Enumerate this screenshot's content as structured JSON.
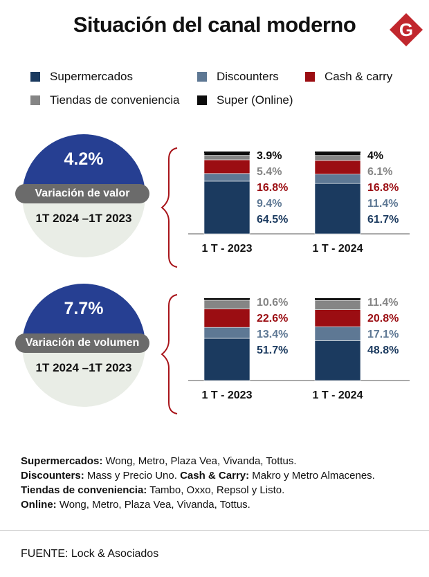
{
  "title": "Situación del canal moderno",
  "logo_letter": "G",
  "colors": {
    "supermercados": "#1b3a5f",
    "discounters": "#5e7894",
    "cash_carry": "#9b0d12",
    "conveniencia": "#858585",
    "online": "#0d0d0d",
    "circle_top": "#263f92",
    "circle_bottom": "#e9ede6",
    "pill": "#6b6b6b",
    "logo": "#c1272d"
  },
  "legend": [
    {
      "key": "supermercados",
      "label": "Supermercados"
    },
    {
      "key": "discounters",
      "label": "Discounters"
    },
    {
      "key": "cash_carry",
      "label": "Cash & carry"
    },
    {
      "key": "conveniencia",
      "label": "Tiendas de conveniencia"
    },
    {
      "key": "online",
      "label": "Super (Online)"
    }
  ],
  "panels": {
    "valor": {
      "pct": "4.2%",
      "label": "Variación de valor",
      "period": "1T 2024 –1T 2023"
    },
    "volumen": {
      "pct": "7.7%",
      "label": "Variación de volumen",
      "period": "1T 2024 –1T 2023"
    }
  },
  "chart_data": [
    {
      "type": "bar",
      "stacked": true,
      "title": "Variación de valor",
      "categories": [
        "1 T - 2023",
        "1 T - 2024"
      ],
      "series": [
        {
          "name": "Supermercados",
          "key": "supermercados",
          "values": [
            64.5,
            61.7
          ],
          "labels": [
            "64.5%",
            "61.7%"
          ]
        },
        {
          "name": "Discounters",
          "key": "discounters",
          "values": [
            9.4,
            11.4
          ],
          "labels": [
            "9.4%",
            "11.4%"
          ]
        },
        {
          "name": "Cash & carry",
          "key": "cash_carry",
          "values": [
            16.8,
            16.8
          ],
          "labels": [
            "16.8%",
            "16.8%"
          ]
        },
        {
          "name": "Tiendas de conveniencia",
          "key": "conveniencia",
          "values": [
            5.4,
            6.1
          ],
          "labels": [
            "5.4%",
            "6.1%"
          ]
        },
        {
          "name": "Super (Online)",
          "key": "online",
          "values": [
            3.9,
            4
          ],
          "labels": [
            "3.9%",
            "4%"
          ]
        }
      ],
      "ylim": [
        0,
        100
      ]
    },
    {
      "type": "bar",
      "stacked": true,
      "title": "Variación de volumen",
      "categories": [
        "1 T - 2023",
        "1 T - 2024"
      ],
      "series": [
        {
          "name": "Supermercados",
          "key": "supermercados",
          "values": [
            51.7,
            48.8
          ],
          "labels": [
            "51.7%",
            "48.8%"
          ]
        },
        {
          "name": "Discounters",
          "key": "discounters",
          "values": [
            13.4,
            17.1
          ],
          "labels": [
            "13.4%",
            "17.1%"
          ]
        },
        {
          "name": "Cash & carry",
          "key": "cash_carry",
          "values": [
            22.6,
            20.8
          ],
          "labels": [
            "22.6%",
            "20.8%"
          ]
        },
        {
          "name": "Tiendas de conveniencia",
          "key": "conveniencia",
          "values": [
            10.6,
            11.4
          ],
          "labels": [
            "10.6%",
            "11.4%"
          ]
        },
        {
          "name": "Super (Online)",
          "key": "online",
          "values": [
            1.7,
            1.9
          ],
          "labels": [
            "",
            ""
          ]
        }
      ],
      "ylim": [
        0,
        100
      ]
    }
  ],
  "notes": [
    {
      "parts": [
        {
          "bold": "Supermercados:"
        },
        {
          "text": " Wong, Metro, Plaza Vea, Vivanda, Tottus."
        }
      ]
    },
    {
      "parts": [
        {
          "bold": "Discounters:"
        },
        {
          "text": " Mass y Precio Uno. "
        },
        {
          "bold": "Cash & Carry:"
        },
        {
          "text": " Makro y Metro Almacenes."
        }
      ]
    },
    {
      "parts": [
        {
          "bold": "Tiendas de conveniencia:"
        },
        {
          "text": " Tambo, Oxxo, Repsol y Listo."
        }
      ]
    },
    {
      "parts": [
        {
          "bold": "Online:"
        },
        {
          "text": " Wong, Metro, Plaza Vea, Vivanda, Tottus."
        }
      ]
    }
  ],
  "source": "FUENTE:  Lock & Asociados"
}
